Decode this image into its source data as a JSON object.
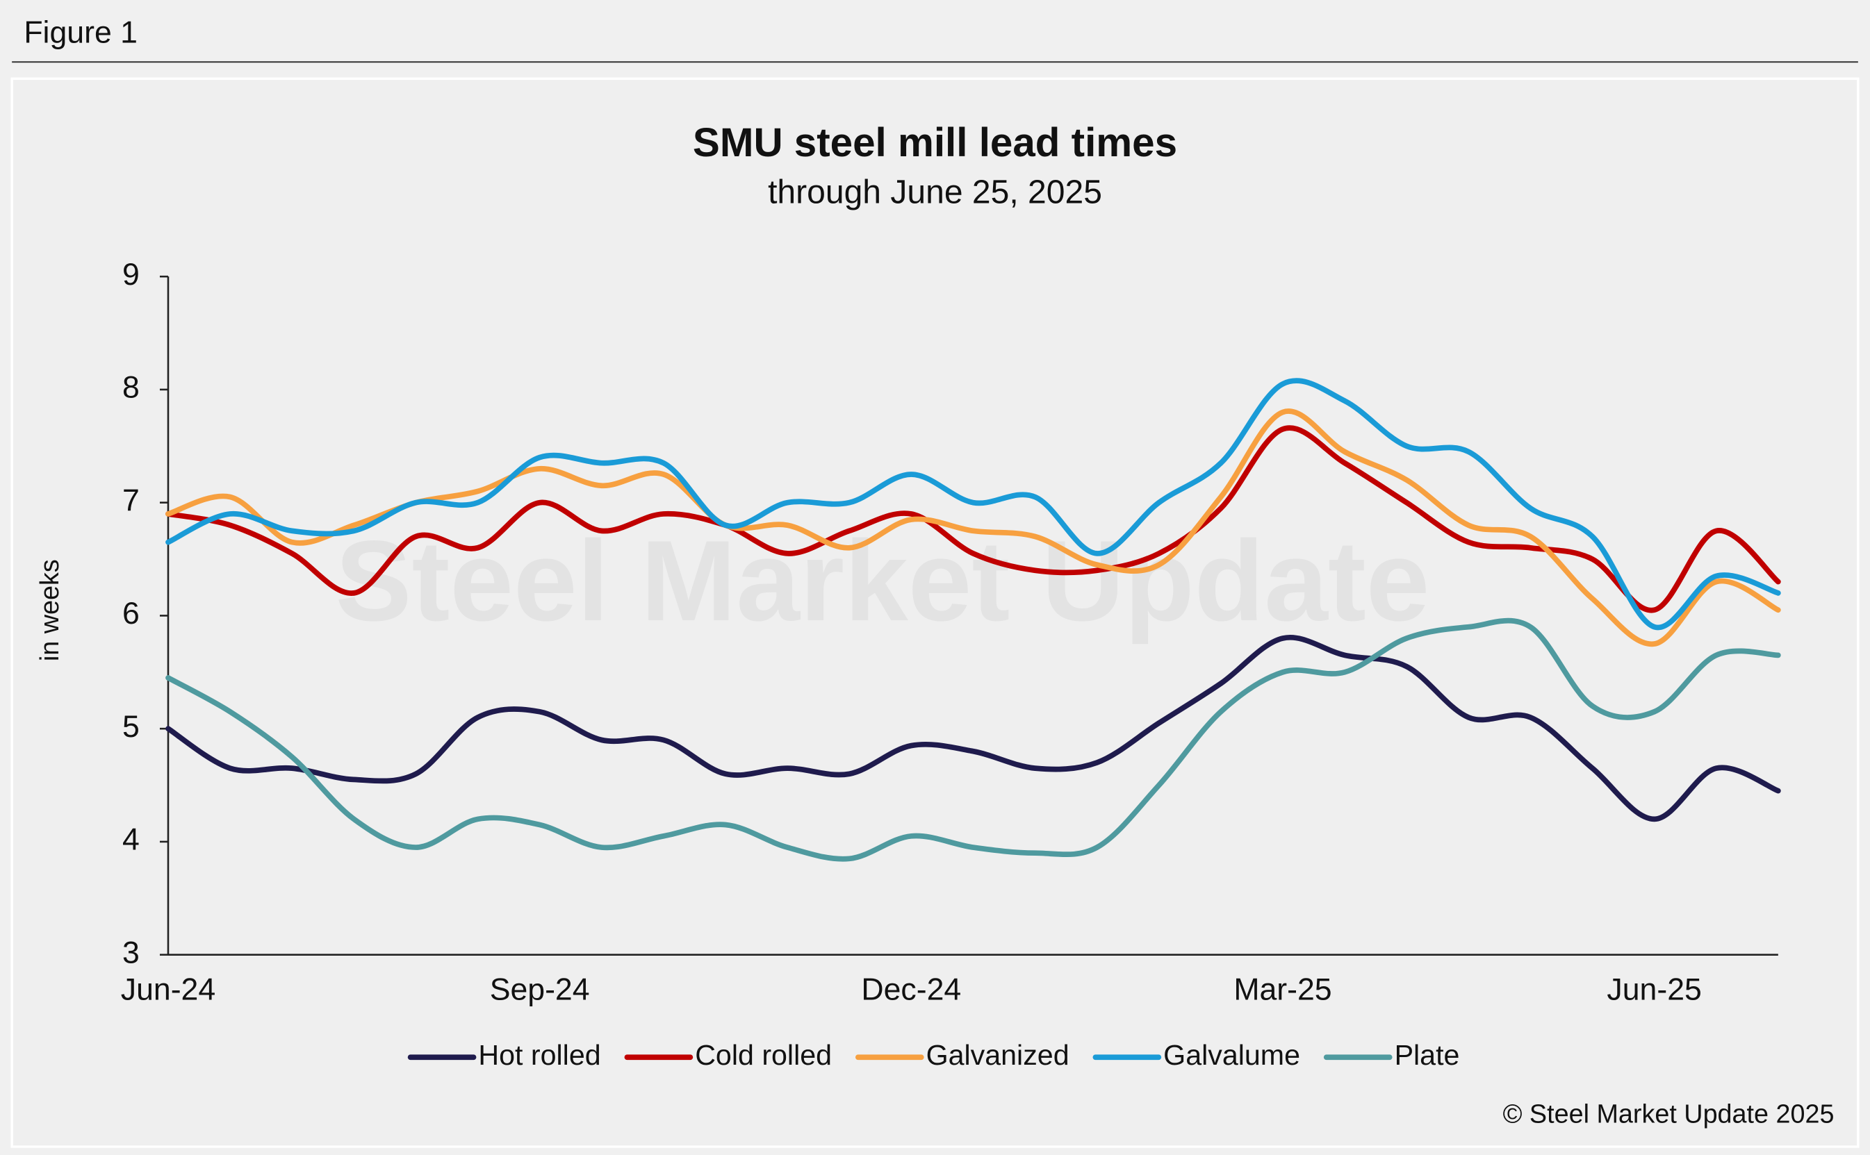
{
  "header": {
    "label": "Figure 1"
  },
  "chart_data": {
    "type": "line",
    "title": "SMU steel mill lead times",
    "subtitle": "through June 25, 2025",
    "y_label": "in weeks",
    "watermark": "Steel Market Update",
    "categories": [
      "Jun-24",
      null,
      null,
      null,
      null,
      null,
      "Sep-24",
      null,
      null,
      null,
      null,
      null,
      "Dec-24",
      null,
      null,
      null,
      null,
      null,
      "Mar-25",
      null,
      null,
      null,
      null,
      null,
      "Jun-25",
      null,
      null
    ],
    "ylim": [
      3,
      9
    ],
    "yticks": [
      3,
      4,
      5,
      6,
      7,
      8,
      9
    ],
    "grid": false,
    "legend": "bottom",
    "series": [
      {
        "name": "Hot rolled",
        "color": "#1f1b4d",
        "values": [
          5.0,
          4.65,
          4.65,
          4.55,
          4.6,
          5.1,
          5.15,
          4.9,
          4.9,
          4.6,
          4.65,
          4.6,
          4.85,
          4.8,
          4.65,
          4.7,
          5.05,
          5.4,
          5.8,
          5.65,
          5.55,
          5.1,
          5.1,
          4.65,
          4.2,
          4.65,
          4.45
        ]
      },
      {
        "name": "Cold rolled",
        "color": "#c00000",
        "values": [
          6.9,
          6.8,
          6.55,
          6.2,
          6.7,
          6.6,
          7.0,
          6.75,
          6.9,
          6.8,
          6.55,
          6.75,
          6.9,
          6.55,
          6.4,
          6.4,
          6.55,
          6.95,
          7.65,
          7.35,
          7.0,
          6.65,
          6.6,
          6.5,
          6.05,
          6.75,
          6.3
        ]
      },
      {
        "name": "Galvanized",
        "color": "#f7a040",
        "values": [
          6.9,
          7.05,
          6.65,
          6.8,
          7.0,
          7.1,
          7.3,
          7.15,
          7.25,
          6.8,
          6.8,
          6.6,
          6.85,
          6.75,
          6.7,
          6.45,
          6.45,
          7.05,
          7.8,
          7.45,
          7.2,
          6.8,
          6.7,
          6.15,
          5.75,
          6.3,
          6.05
        ]
      },
      {
        "name": "Galvalume",
        "color": "#1a9bd7",
        "values": [
          6.65,
          6.9,
          6.75,
          6.75,
          7.0,
          7.0,
          7.4,
          7.35,
          7.35,
          6.8,
          7.0,
          7.0,
          7.25,
          7.0,
          7.05,
          6.55,
          7.0,
          7.35,
          8.05,
          7.9,
          7.5,
          7.45,
          6.95,
          6.7,
          5.9,
          6.35,
          6.2
        ]
      },
      {
        "name": "Plate",
        "color": "#4f9a9f",
        "values": [
          5.45,
          5.15,
          4.75,
          4.2,
          3.95,
          4.2,
          4.15,
          3.95,
          4.05,
          4.15,
          3.95,
          3.85,
          4.05,
          3.95,
          3.9,
          3.95,
          4.5,
          5.15,
          5.5,
          5.5,
          5.8,
          5.9,
          5.9,
          5.2,
          5.15,
          5.65,
          5.65
        ]
      }
    ]
  },
  "footer": {
    "copyright": "© Steel Market Update 2025"
  }
}
